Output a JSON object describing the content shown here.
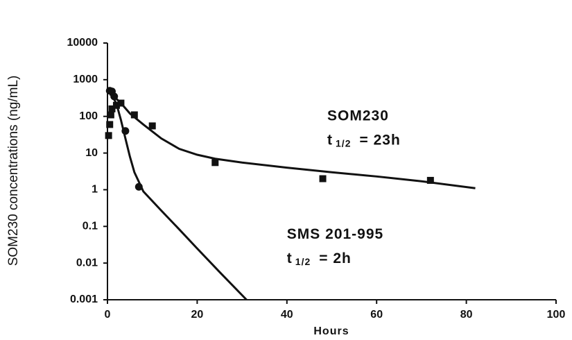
{
  "chart_data": {
    "type": "scatter",
    "y_label": "SOM230 concentrations (ng/mL)",
    "x_label": "Hours",
    "log_y": true,
    "xlim": [
      0,
      100
    ],
    "ylim": [
      0.001,
      10000
    ],
    "xticks": [
      0,
      20,
      40,
      60,
      80,
      100
    ],
    "yticks": [
      0.001,
      0.01,
      0.1,
      1,
      10,
      100,
      1000,
      10000
    ],
    "series": [
      {
        "marker": "square",
        "color": "#111111",
        "x": [
          0.25,
          0.5,
          0.75,
          1,
          2,
          3,
          6,
          10,
          24,
          48,
          72
        ],
        "values": [
          30,
          60,
          110,
          160,
          200,
          230,
          110,
          55,
          5.5,
          2,
          1.8
        ]
      },
      {
        "marker": "circle",
        "color": "#111111",
        "x": [
          0.5,
          1,
          1.5,
          4,
          7
        ],
        "values": [
          500,
          480,
          350,
          40,
          1.2
        ]
      },
      {
        "marker": "line",
        "color": "#111111",
        "x": [
          0.5,
          1,
          2,
          3,
          5,
          8,
          12,
          16,
          20,
          24,
          30,
          40,
          50,
          60,
          70,
          82
        ],
        "values": [
          400,
          380,
          300,
          230,
          120,
          60,
          25,
          13,
          9,
          7,
          5.5,
          4,
          3,
          2.3,
          1.7,
          1.1
        ]
      },
      {
        "marker": "line",
        "color": "#111111",
        "x": [
          0.5,
          1,
          2,
          3,
          4,
          5,
          6,
          8,
          12,
          16,
          20,
          25,
          31
        ],
        "values": [
          400,
          380,
          220,
          80,
          25,
          8,
          3,
          0.9,
          0.27,
          0.083,
          0.025,
          0.0057,
          0.001
        ]
      }
    ],
    "annotations": [
      {
        "text": "SOM230",
        "x": 49,
        "y": 100
      },
      {
        "text": "t",
        "sub": "1/2",
        "rest": "= 23h",
        "x": 49,
        "y": 22
      },
      {
        "text": "SMS 201-995",
        "x": 40,
        "y": 0.06
      },
      {
        "text": "t",
        "sub": "1/2",
        "rest": "= 2h",
        "x": 40,
        "y": 0.013
      }
    ]
  }
}
